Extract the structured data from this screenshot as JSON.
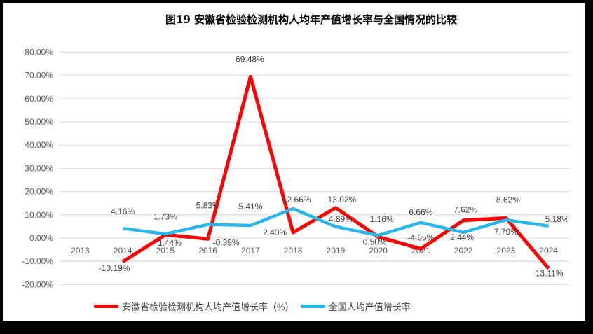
{
  "frame": {
    "border_color": "#000000",
    "background": "#FFFFFF"
  },
  "chart_data": {
    "type": "line",
    "title": "图19 安徽省检验检测机构人均年产值增长率与全国情况的比较",
    "categories": [
      "2013",
      "2014",
      "2015",
      "2016",
      "2017",
      "2018",
      "2019",
      "2020",
      "2021",
      "2022",
      "2023",
      "2024"
    ],
    "series": [
      {
        "name": "安徽省检验检测机构人均产值增长率（%）",
        "color": "#FF0000",
        "values": [
          null,
          -10.19,
          1.44,
          -0.39,
          69.48,
          2.4,
          13.02,
          0.5,
          -4.65,
          7.62,
          8.62,
          -13.11
        ]
      },
      {
        "name": "全国人均产值增长率",
        "color": "#28B6EB",
        "values": [
          null,
          4.16,
          1.73,
          5.83,
          5.41,
          12.66,
          4.89,
          1.16,
          6.66,
          2.44,
          7.79,
          5.18
        ]
      }
    ],
    "ylim": [
      -20,
      80
    ],
    "ytick_step": 10,
    "ytick_labels": [
      "80.00%",
      "70.00%",
      "60.00%",
      "50.00%",
      "40.00%",
      "30.00%",
      "20.00%",
      "10.00%",
      "0.00%",
      "-10.00%",
      "-20.00%"
    ],
    "data_labels_shown": true,
    "grid": true,
    "gridline_color": "#D9D9D9",
    "axis_text_color": "#595959",
    "data_label_color": "#404040",
    "legend_position": "bottom"
  }
}
